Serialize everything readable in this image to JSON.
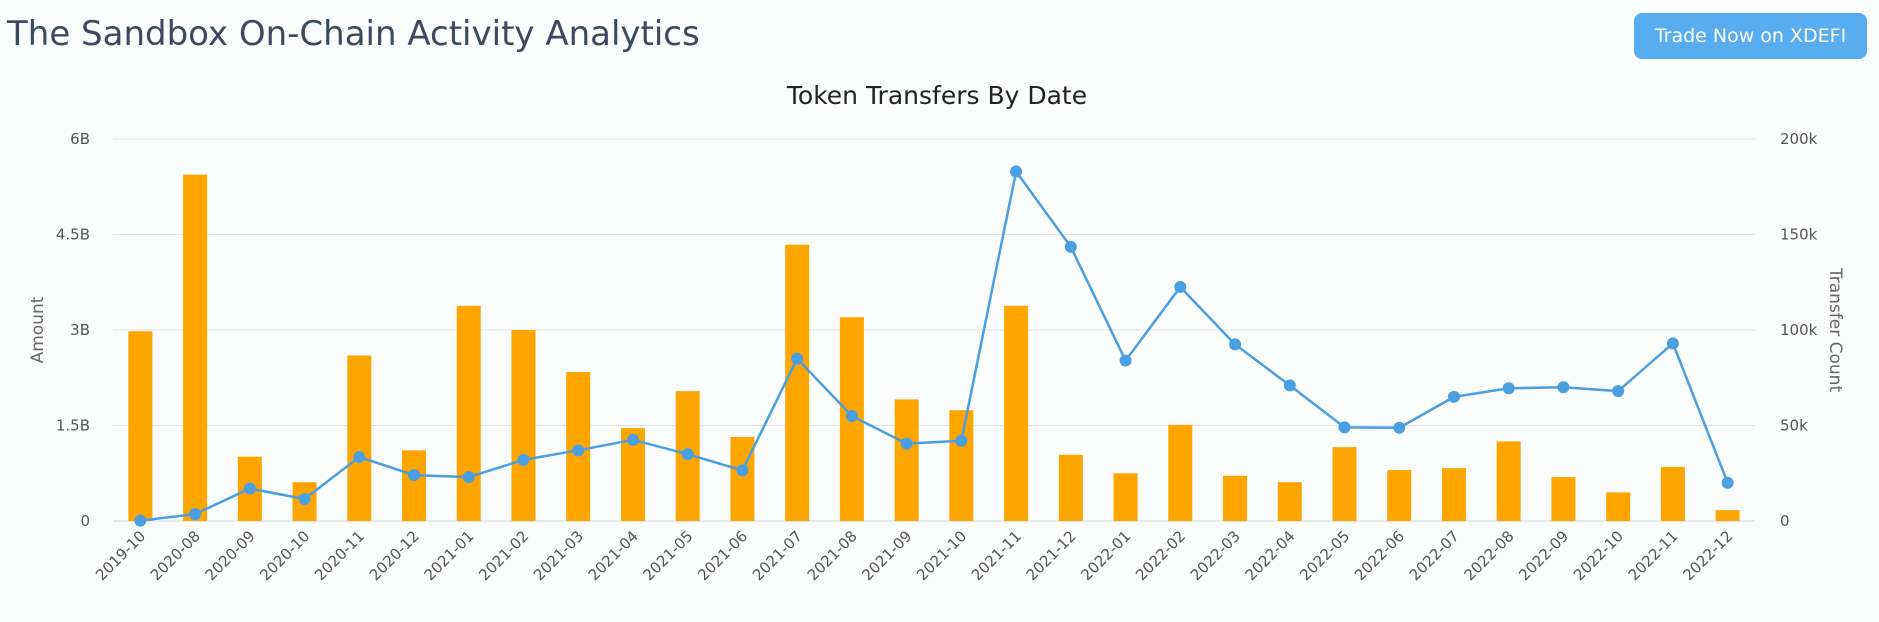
{
  "header": {
    "title": "The Sandbox On-Chain Activity Analytics",
    "trade_button_label": "Trade Now on XDEFI"
  },
  "colors": {
    "bar": "#ffa500",
    "line": "#4a9fe0",
    "grid": "#e3e3e3",
    "button": "#58acf0"
  },
  "chart_data": {
    "type": "bar",
    "title": "Token Transfers By Date",
    "categories": [
      "2019-10",
      "2020-08",
      "2020-09",
      "2020-10",
      "2020-11",
      "2020-12",
      "2021-01",
      "2021-02",
      "2021-03",
      "2021-04",
      "2021-05",
      "2021-06",
      "2021-07",
      "2021-08",
      "2021-09",
      "2021-10",
      "2021-11",
      "2021-12",
      "2022-01",
      "2022-02",
      "2022-03",
      "2022-04",
      "2022-05",
      "2022-06",
      "2022-07",
      "2022-08",
      "2022-09",
      "2022-10",
      "2022-11",
      "2022-12"
    ],
    "ylabel_left": "Amount",
    "ylabel_right": "Transfer Count",
    "left_axis": {
      "ticks": [
        0,
        1500000000,
        3000000000,
        4500000000,
        6000000000
      ],
      "tick_labels": [
        "0",
        "1.5B",
        "3B",
        "4.5B",
        "6B"
      ],
      "ylim": [
        0,
        6000000000
      ]
    },
    "right_axis": {
      "ticks": [
        0,
        50000,
        100000,
        150000,
        200000
      ],
      "tick_labels": [
        "0",
        "50k",
        "100k",
        "150k",
        "200k"
      ],
      "ylim": [
        0,
        200000
      ]
    },
    "grid": true,
    "series": [
      {
        "type": "bar",
        "axis": "left",
        "values": [
          2980000000,
          5440000000,
          1010000000,
          610000000,
          2600000000,
          1110000000,
          3380000000,
          3000000000,
          2340000000,
          1460000000,
          2040000000,
          1320000000,
          4340000000,
          3200000000,
          1910000000,
          1740000000,
          3380000000,
          1040000000,
          750000000,
          1510000000,
          710000000,
          610000000,
          1160000000,
          800000000,
          830000000,
          1250000000,
          690000000,
          450000000,
          850000000,
          170000000
        ]
      },
      {
        "type": "line",
        "axis": "right",
        "values": [
          200,
          3600,
          17000,
          11500,
          33500,
          24000,
          23000,
          32000,
          37000,
          42500,
          35000,
          26500,
          85000,
          55000,
          40500,
          42000,
          183000,
          143500,
          84000,
          122500,
          92500,
          71000,
          49000,
          48800,
          65000,
          69500,
          70000,
          68000,
          93000,
          20000
        ]
      }
    ]
  }
}
